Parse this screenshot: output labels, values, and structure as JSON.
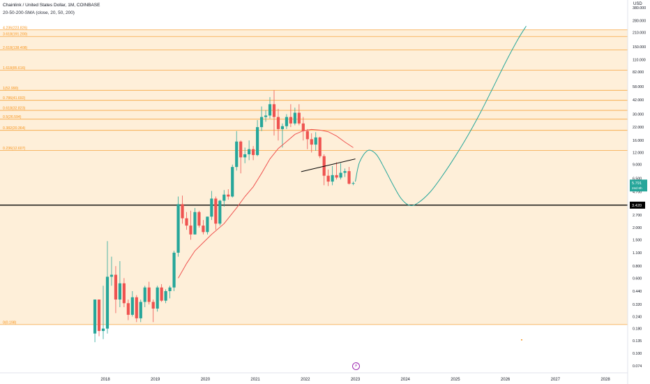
{
  "header": {
    "symbol": "Chainlink / United States Dollar, 1M, COINBASE",
    "indicator": "20-50-200-SMA (close, 20, 50, 200)"
  },
  "price_axis": {
    "currency": "USD",
    "tick_labels": [
      "380.000",
      "280.000",
      "210.000",
      "150.000",
      "110.000",
      "82.000",
      "58.000",
      "42.000",
      "30.000",
      "22.000",
      "16.000",
      "12.000",
      "9.000",
      "6.500",
      "4.700",
      "3.420",
      "2.700",
      "2.000",
      "1.500",
      "1.100",
      "0.800",
      "0.600",
      "0.440",
      "0.320",
      "0.240",
      "0.180",
      "0.135",
      "0.100",
      "0.074"
    ],
    "tick_values": [
      380,
      280,
      210,
      150,
      110,
      82,
      58,
      42,
      30,
      22,
      16,
      12,
      9,
      6.5,
      4.7,
      3.42,
      2.7,
      2.0,
      1.5,
      1.1,
      0.8,
      0.6,
      0.44,
      0.32,
      0.24,
      0.18,
      0.135,
      0.1,
      0.074
    ]
  },
  "time_axis": {
    "labels": [
      "2018",
      "2019",
      "2020",
      "2021",
      "2022",
      "2023",
      "2024",
      "2025",
      "2026",
      "2027",
      "2028"
    ]
  },
  "current_price": {
    "value": 5.791,
    "label": "5.791",
    "countdown": "24d 6h",
    "color": "#26a69a"
  },
  "horizontal_line": {
    "value": 3.42,
    "label": "3.420",
    "color": "#000000"
  },
  "flash_icon": "lightning-icon",
  "colors": {
    "up": "#26a69a",
    "down": "#ef5350",
    "sma": "#ef5350",
    "fib_line": "#f6a540",
    "fib_text": "#f7931a",
    "fib_fill": "#fde9cc",
    "projection": "#26a69a",
    "trend": "#000000"
  },
  "chart_data": {
    "type": "candlestick",
    "title": "Chainlink / United States Dollar, 1M, COINBASE",
    "interval": "1M",
    "y_scale": "log",
    "ylim": [
      0.074,
      380
    ],
    "x_range": [
      "2017-05",
      "2028-07"
    ],
    "fib_levels": [
      {
        "label": "0(0.198)",
        "ratio": 0,
        "price": 0.198
      },
      {
        "label": "0.236(12.607)",
        "ratio": 0.236,
        "price": 12.607
      },
      {
        "label": "0.382(20.364)",
        "ratio": 0.382,
        "price": 20.364
      },
      {
        "label": "0.5(26.594)",
        "ratio": 0.5,
        "price": 26.594
      },
      {
        "label": "0.618(32.823)",
        "ratio": 0.618,
        "price": 32.823
      },
      {
        "label": "0.786(41.692)",
        "ratio": 0.786,
        "price": 41.692
      },
      {
        "label": "1(52.990)",
        "ratio": 1,
        "price": 52.99
      },
      {
        "label": "1.618(85.616)",
        "ratio": 1.618,
        "price": 85.616
      },
      {
        "label": "2.618(138.408)",
        "ratio": 2.618,
        "price": 138.408
      },
      {
        "label": "3.618(191.200)",
        "ratio": 3.618,
        "price": 191.2
      },
      {
        "label": "4.236(223.826)",
        "ratio": 4.236,
        "price": 223.826
      }
    ],
    "candles": [
      {
        "t": "2017-10",
        "o": 0.16,
        "h": 0.36,
        "l": 0.13,
        "c": 0.36
      },
      {
        "t": "2017-11",
        "o": 0.36,
        "h": 0.36,
        "l": 0.15,
        "c": 0.17
      },
      {
        "t": "2017-12",
        "o": 0.17,
        "h": 0.5,
        "l": 0.14,
        "c": 0.18
      },
      {
        "t": "2018-01",
        "o": 0.18,
        "h": 1.45,
        "l": 0.16,
        "c": 0.62
      },
      {
        "t": "2018-02",
        "o": 0.62,
        "h": 1.0,
        "l": 0.5,
        "c": 0.65
      },
      {
        "t": "2018-03",
        "o": 0.65,
        "h": 0.8,
        "l": 0.26,
        "c": 0.36
      },
      {
        "t": "2018-04",
        "o": 0.36,
        "h": 0.9,
        "l": 0.3,
        "c": 0.53
      },
      {
        "t": "2018-05",
        "o": 0.53,
        "h": 0.6,
        "l": 0.3,
        "c": 0.33
      },
      {
        "t": "2018-06",
        "o": 0.33,
        "h": 0.36,
        "l": 0.22,
        "c": 0.25
      },
      {
        "t": "2018-07",
        "o": 0.25,
        "h": 0.44,
        "l": 0.24,
        "c": 0.38
      },
      {
        "t": "2018-08",
        "o": 0.38,
        "h": 0.4,
        "l": 0.21,
        "c": 0.23
      },
      {
        "t": "2018-09",
        "o": 0.23,
        "h": 0.36,
        "l": 0.21,
        "c": 0.34
      },
      {
        "t": "2018-10",
        "o": 0.34,
        "h": 0.5,
        "l": 0.3,
        "c": 0.48
      },
      {
        "t": "2018-11",
        "o": 0.48,
        "h": 0.55,
        "l": 0.32,
        "c": 0.34
      },
      {
        "t": "2018-12",
        "o": 0.34,
        "h": 0.36,
        "l": 0.21,
        "c": 0.29
      },
      {
        "t": "2019-01",
        "o": 0.29,
        "h": 0.5,
        "l": 0.27,
        "c": 0.48
      },
      {
        "t": "2019-02",
        "o": 0.48,
        "h": 0.52,
        "l": 0.34,
        "c": 0.35
      },
      {
        "t": "2019-03",
        "o": 0.35,
        "h": 0.46,
        "l": 0.33,
        "c": 0.44
      },
      {
        "t": "2019-04",
        "o": 0.44,
        "h": 0.5,
        "l": 0.37,
        "c": 0.48
      },
      {
        "t": "2019-05",
        "o": 0.48,
        "h": 1.15,
        "l": 0.44,
        "c": 1.1
      },
      {
        "t": "2019-06",
        "o": 1.1,
        "h": 4.2,
        "l": 1.0,
        "c": 3.5
      },
      {
        "t": "2019-07",
        "o": 3.5,
        "h": 4.3,
        "l": 2.2,
        "c": 2.5
      },
      {
        "t": "2019-08",
        "o": 2.5,
        "h": 2.9,
        "l": 1.9,
        "c": 2.1
      },
      {
        "t": "2019-09",
        "o": 2.1,
        "h": 3.0,
        "l": 1.5,
        "c": 1.7
      },
      {
        "t": "2019-10",
        "o": 1.7,
        "h": 3.2,
        "l": 1.7,
        "c": 2.9
      },
      {
        "t": "2019-11",
        "o": 2.9,
        "h": 3.0,
        "l": 2.0,
        "c": 2.1
      },
      {
        "t": "2019-12",
        "o": 2.1,
        "h": 2.4,
        "l": 1.7,
        "c": 1.8
      },
      {
        "t": "2020-01",
        "o": 1.8,
        "h": 2.6,
        "l": 1.7,
        "c": 2.6
      },
      {
        "t": "2020-02",
        "o": 2.6,
        "h": 4.8,
        "l": 2.4,
        "c": 4.0
      },
      {
        "t": "2020-03",
        "o": 4.0,
        "h": 4.2,
        "l": 1.9,
        "c": 2.2
      },
      {
        "t": "2020-04",
        "o": 2.2,
        "h": 3.9,
        "l": 2.1,
        "c": 3.8
      },
      {
        "t": "2020-05",
        "o": 3.8,
        "h": 4.9,
        "l": 3.3,
        "c": 4.4
      },
      {
        "t": "2020-06",
        "o": 4.4,
        "h": 5.0,
        "l": 3.9,
        "c": 4.2
      },
      {
        "t": "2020-07",
        "o": 4.2,
        "h": 9.0,
        "l": 4.1,
        "c": 8.5
      },
      {
        "t": "2020-08",
        "o": 8.5,
        "h": 20.0,
        "l": 7.8,
        "c": 15.6
      },
      {
        "t": "2020-09",
        "o": 15.6,
        "h": 16.0,
        "l": 7.3,
        "c": 10.7
      },
      {
        "t": "2020-10",
        "o": 10.7,
        "h": 13.5,
        "l": 9.3,
        "c": 11.5
      },
      {
        "t": "2020-11",
        "o": 11.5,
        "h": 16.0,
        "l": 10.0,
        "c": 13.0
      },
      {
        "t": "2020-12",
        "o": 13.0,
        "h": 14.0,
        "l": 10.0,
        "c": 11.3
      },
      {
        "t": "2021-01",
        "o": 11.3,
        "h": 26.0,
        "l": 11.0,
        "c": 22.0
      },
      {
        "t": "2021-02",
        "o": 22.0,
        "h": 36.0,
        "l": 20.0,
        "c": 28.0
      },
      {
        "t": "2021-03",
        "o": 28.0,
        "h": 33.0,
        "l": 25.0,
        "c": 29.0
      },
      {
        "t": "2021-04",
        "o": 29.0,
        "h": 45.0,
        "l": 27.0,
        "c": 38.0
      },
      {
        "t": "2021-05",
        "o": 38.0,
        "h": 53.0,
        "l": 18.0,
        "c": 28.0
      },
      {
        "t": "2021-06",
        "o": 28.0,
        "h": 34.0,
        "l": 16.0,
        "c": 21.0
      },
      {
        "t": "2021-07",
        "o": 21.0,
        "h": 24.0,
        "l": 13.5,
        "c": 22.5
      },
      {
        "t": "2021-08",
        "o": 22.5,
        "h": 30.0,
        "l": 21.0,
        "c": 28.0
      },
      {
        "t": "2021-09",
        "o": 28.0,
        "h": 38.0,
        "l": 22.0,
        "c": 24.0
      },
      {
        "t": "2021-10",
        "o": 24.0,
        "h": 35.0,
        "l": 23.0,
        "c": 31.0
      },
      {
        "t": "2021-11",
        "o": 31.0,
        "h": 38.0,
        "l": 23.0,
        "c": 24.0
      },
      {
        "t": "2021-12",
        "o": 24.0,
        "h": 28.0,
        "l": 16.0,
        "c": 20.0
      },
      {
        "t": "2022-01",
        "o": 20.0,
        "h": 21.0,
        "l": 13.0,
        "c": 16.5
      },
      {
        "t": "2022-02",
        "o": 16.5,
        "h": 19.0,
        "l": 12.0,
        "c": 14.5
      },
      {
        "t": "2022-03",
        "o": 14.5,
        "h": 19.5,
        "l": 12.5,
        "c": 17.2
      },
      {
        "t": "2022-04",
        "o": 17.2,
        "h": 17.5,
        "l": 10.5,
        "c": 11.0
      },
      {
        "t": "2022-05",
        "o": 11.0,
        "h": 11.5,
        "l": 5.5,
        "c": 6.9
      },
      {
        "t": "2022-06",
        "o": 6.9,
        "h": 8.0,
        "l": 5.4,
        "c": 6.0
      },
      {
        "t": "2022-07",
        "o": 6.0,
        "h": 8.7,
        "l": 5.5,
        "c": 7.0
      },
      {
        "t": "2022-08",
        "o": 7.0,
        "h": 9.5,
        "l": 6.3,
        "c": 6.6
      },
      {
        "t": "2022-09",
        "o": 6.6,
        "h": 9.3,
        "l": 6.3,
        "c": 7.4
      },
      {
        "t": "2022-10",
        "o": 7.4,
        "h": 8.2,
        "l": 6.7,
        "c": 7.7
      },
      {
        "t": "2022-11",
        "o": 7.7,
        "h": 8.5,
        "l": 5.6,
        "c": 5.7
      },
      {
        "t": "2022-12",
        "o": 5.7,
        "h": 6.0,
        "l": 5.5,
        "c": 5.791
      }
    ],
    "sma": {
      "name": "SMA 20",
      "points": [
        [
          "2019-06",
          0.6
        ],
        [
          "2019-08",
          0.85
        ],
        [
          "2019-10",
          1.15
        ],
        [
          "2019-12",
          1.4
        ],
        [
          "2020-02",
          1.7
        ],
        [
          "2020-05",
          2.2
        ],
        [
          "2020-08",
          3.2
        ],
        [
          "2020-10",
          4.2
        ],
        [
          "2020-12",
          5.3
        ],
        [
          "2021-02",
          7.3
        ],
        [
          "2021-04",
          10.3
        ],
        [
          "2021-06",
          13.2
        ],
        [
          "2021-08",
          15.6
        ],
        [
          "2021-10",
          18.5
        ],
        [
          "2021-12",
          20.2
        ],
        [
          "2022-02",
          20.8
        ],
        [
          "2022-04",
          20.5
        ],
        [
          "2022-06",
          19.7
        ],
        [
          "2022-08",
          17.8
        ],
        [
          "2022-10",
          15.4
        ],
        [
          "2022-12",
          13.5
        ]
      ]
    },
    "trendline": {
      "points": [
        [
          "2021-12",
          7.6
        ],
        [
          "2023-01",
          10.3
        ]
      ]
    },
    "projection": {
      "points": [
        [
          "2023-01",
          6.0
        ],
        [
          "2023-02",
          9.5
        ],
        [
          "2023-04",
          12.6
        ],
        [
          "2023-06",
          11.5
        ],
        [
          "2023-08",
          8.2
        ],
        [
          "2023-10",
          5.6
        ],
        [
          "2023-12",
          4.0
        ],
        [
          "2024-02",
          3.4
        ],
        [
          "2024-04",
          3.6
        ],
        [
          "2024-07",
          4.7
        ],
        [
          "2024-10",
          7.0
        ],
        [
          "2025-01",
          11.0
        ],
        [
          "2025-04",
          18.0
        ],
        [
          "2025-07",
          31.0
        ],
        [
          "2025-10",
          56.0
        ],
        [
          "2026-01",
          102.0
        ],
        [
          "2026-04",
          178.0
        ],
        [
          "2026-06",
          245.0
        ]
      ]
    }
  }
}
